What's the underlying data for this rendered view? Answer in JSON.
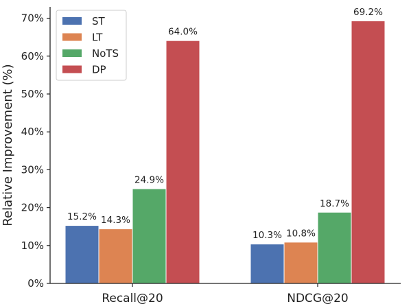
{
  "chart_data": {
    "type": "bar",
    "categories": [
      "Recall@20",
      "NDCG@20"
    ],
    "series": [
      {
        "name": "ST",
        "color": "#4c72b0",
        "values": [
          15.2,
          10.3
        ],
        "labels": [
          "15.2%",
          "10.3%"
        ]
      },
      {
        "name": "LT",
        "color": "#dd8452",
        "values": [
          14.3,
          10.8
        ],
        "labels": [
          "14.3%",
          "10.8%"
        ]
      },
      {
        "name": "NoTS",
        "color": "#55a868",
        "values": [
          24.9,
          18.7
        ],
        "labels": [
          "24.9%",
          "18.7%"
        ]
      },
      {
        "name": "DP",
        "color": "#c44e52",
        "values": [
          64.0,
          69.2
        ],
        "labels": [
          "64.0%",
          "69.2%"
        ]
      }
    ],
    "ylabel": "Relative Improvement (%)",
    "xlabel": "",
    "ylim": [
      0,
      73
    ],
    "yticks": [
      0,
      10,
      20,
      30,
      40,
      50,
      60,
      70
    ],
    "ytick_labels": [
      "0%",
      "10%",
      "20%",
      "30%",
      "40%",
      "50%",
      "60%",
      "70%"
    ],
    "legend_position": "top-left",
    "grid": false
  }
}
